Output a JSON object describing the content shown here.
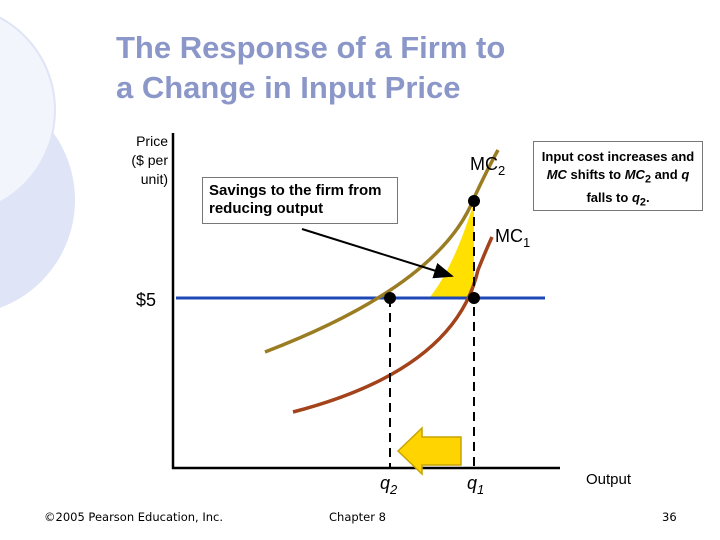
{
  "slide": {
    "title_line1": "The Response of a Firm to",
    "title_line2": "a Change in Input Price",
    "slide_number": "36"
  },
  "footer": {
    "copyright": "©2005 Pearson Education, Inc.",
    "chapter": "Chapter 8"
  },
  "chart_data": {
    "type": "line",
    "ylabel_lines": [
      "Price",
      "($ per",
      "unit)"
    ],
    "xlabel": "Output",
    "price_label": "$5",
    "series": [
      {
        "name": "MC",
        "subscript": "2",
        "color": "#9a7d22"
      },
      {
        "name": "MC",
        "subscript": "1",
        "color": "#a2431c"
      }
    ],
    "points": [
      {
        "label": "q",
        "subscript": "2"
      },
      {
        "label": "q",
        "subscript": "1"
      }
    ],
    "colors": {
      "price_line": "#1f48b6",
      "shaded_area": "#ffe000",
      "arrow": "#ffd400",
      "arrow_border": "#c9a400",
      "axis": "#000000",
      "slide_decoration": "#dfe4f6"
    },
    "annotations": {
      "savings": "Savings to the firm from reducing output",
      "input_cost_parts": [
        "Input cost increases and ",
        "MC",
        " shifts to ",
        "MC",
        "2",
        " and ",
        "q",
        "  falls to ",
        "q",
        "2",
        "."
      ]
    }
  }
}
